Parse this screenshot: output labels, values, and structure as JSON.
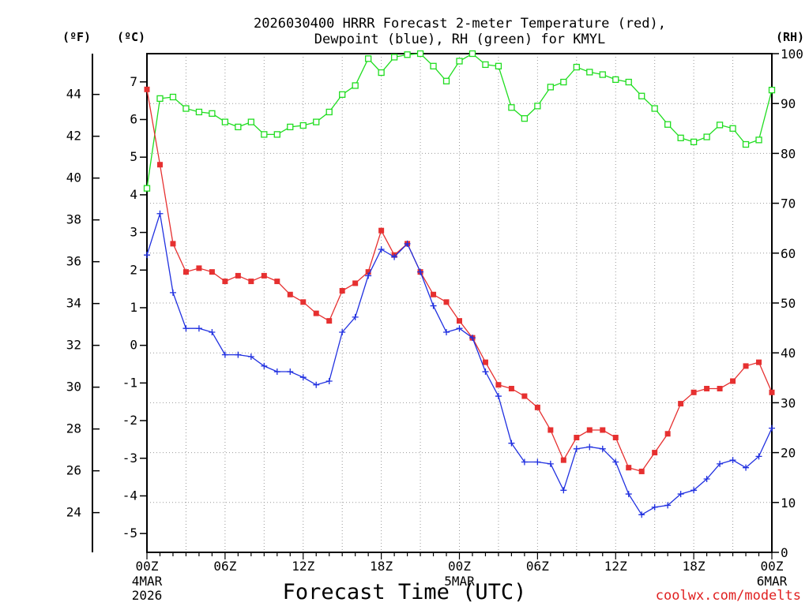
{
  "chart_data": {
    "type": "line",
    "title_line1": "2026030400 HRRR Forecast 2-meter Temperature (red),",
    "title_line2": "Dewpoint (blue), RH (green) for KMYL",
    "xlabel": "Forecast Time (UTC)",
    "credit": "coolwx.com/modelts",
    "units": {
      "fahrenheit": "(ºF)",
      "celsius": "(ºC)",
      "rh": "(RH)"
    },
    "x_range": [
      0,
      48
    ],
    "x_ticks": [
      {
        "hour": 0,
        "label": "00Z",
        "sub1": "4MAR",
        "sub2": "2026"
      },
      {
        "hour": 6,
        "label": "06Z",
        "sub1": "",
        "sub2": ""
      },
      {
        "hour": 12,
        "label": "12Z",
        "sub1": "",
        "sub2": ""
      },
      {
        "hour": 18,
        "label": "18Z",
        "sub1": "",
        "sub2": ""
      },
      {
        "hour": 24,
        "label": "00Z",
        "sub1": "5MAR",
        "sub2": ""
      },
      {
        "hour": 30,
        "label": "06Z",
        "sub1": "",
        "sub2": ""
      },
      {
        "hour": 36,
        "label": "12Z",
        "sub1": "",
        "sub2": ""
      },
      {
        "hour": 42,
        "label": "18Z",
        "sub1": "",
        "sub2": ""
      },
      {
        "hour": 48,
        "label": "00Z",
        "sub1": "6MAR",
        "sub2": ""
      }
    ],
    "celsius_axis": {
      "range": [
        -5.5,
        7.75
      ],
      "ticks": [
        "7",
        "6",
        "5",
        "4",
        "3",
        "2",
        "1",
        "0",
        "-1",
        "-2",
        "-3",
        "-4",
        "-5"
      ]
    },
    "fahrenheit_axis": {
      "range": [
        22.1,
        45.95
      ],
      "ticks": [
        "44",
        "42",
        "40",
        "38",
        "36",
        "34",
        "32",
        "30",
        "28",
        "26",
        "24"
      ]
    },
    "rh_axis": {
      "range": [
        0,
        100
      ],
      "ticks": [
        "100",
        "90",
        "80",
        "70",
        "60",
        "50",
        "40",
        "30",
        "20",
        "10",
        "0"
      ]
    },
    "series": [
      {
        "name": "2-meter Temperature (°C)",
        "axis": "celsius",
        "color": "#e63030",
        "marker": "filled-square",
        "values": [
          6.8,
          4.8,
          2.7,
          1.95,
          2.05,
          1.95,
          1.7,
          1.85,
          1.7,
          1.85,
          1.7,
          1.35,
          1.15,
          0.85,
          0.65,
          1.45,
          1.65,
          1.95,
          3.05,
          2.4,
          2.7,
          1.95,
          1.35,
          1.15,
          0.65,
          0.2,
          -0.45,
          -1.05,
          -1.15,
          -1.35,
          -1.65,
          -2.25,
          -3.05,
          -2.45,
          -2.25,
          -2.25,
          -2.45,
          -3.25,
          -3.35,
          -2.85,
          -2.35,
          -1.55,
          -1.25,
          -1.15,
          -1.15,
          -0.95,
          -0.55,
          -0.45,
          -1.25
        ]
      },
      {
        "name": "Dewpoint (°C)",
        "axis": "celsius",
        "color": "#2030e0",
        "marker": "plus",
        "values": [
          2.4,
          3.5,
          1.4,
          0.45,
          0.45,
          0.35,
          -0.25,
          -0.25,
          -0.3,
          -0.55,
          -0.7,
          -0.7,
          -0.85,
          -1.05,
          -0.95,
          0.35,
          0.75,
          1.85,
          2.55,
          2.35,
          2.7,
          1.95,
          1.05,
          0.35,
          0.45,
          0.2,
          -0.7,
          -1.35,
          -2.6,
          -3.1,
          -3.1,
          -3.15,
          -3.85,
          -2.75,
          -2.7,
          -2.75,
          -3.1,
          -3.95,
          -4.5,
          -4.3,
          -4.25,
          -3.95,
          -3.85,
          -3.55,
          -3.15,
          -3.05,
          -3.25,
          -2.95,
          -2.2
        ]
      },
      {
        "name": "RH (%)",
        "axis": "rh",
        "color": "#20dd20",
        "marker": "open-square",
        "values": [
          73,
          91,
          91.3,
          89,
          88.3,
          88,
          86.3,
          85.3,
          86.3,
          83.8,
          83.8,
          85.3,
          85.6,
          86.3,
          88.3,
          91.8,
          93.6,
          99,
          96.2,
          99.3,
          99.8,
          100,
          97.5,
          94.5,
          98.5,
          100,
          97.8,
          97.5,
          89.2,
          87,
          89.5,
          93.3,
          94.3,
          97.3,
          96.3,
          95.8,
          94.8,
          94.3,
          91.5,
          89,
          85.8,
          83.1,
          82.3,
          83.3,
          85.7,
          85,
          81.8,
          82.7,
          92.7
        ]
      }
    ],
    "grid": true
  }
}
